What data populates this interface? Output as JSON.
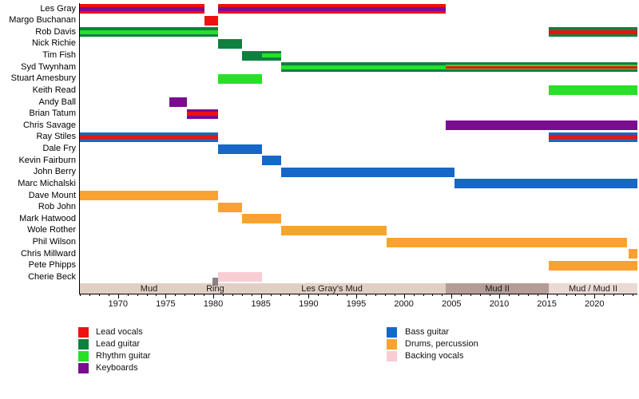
{
  "chart_data": {
    "type": "timeline",
    "subject": "band-members-timeline",
    "x_axis": {
      "min": 1966,
      "max": 2024.5,
      "major_ticks": [
        1970,
        1975,
        1980,
        1985,
        1990,
        1995,
        2000,
        2005,
        2010,
        2015,
        2020
      ],
      "minor_tick_step": 1,
      "grid": "off"
    },
    "colors": {
      "lead_vocals": "#ee1111",
      "lead_guitar": "#0e8040",
      "rhythm_guitar": "#27e027",
      "keyboards": "#7a0d8f",
      "bass_guitar": "#1667c6",
      "drums_percussion": "#f9a231",
      "backing_vocals": "#f9cdd4",
      "era_mud": "#e2cfc4",
      "era_ring": "#8e8184",
      "era_les_grays_mud": "#e2cfc4",
      "era_mud_ii": "#b49d96",
      "era_mud_mud_ii": "#ebd9d3"
    },
    "legend": {
      "position": "bottom-left",
      "columns": [
        [
          {
            "role": "lead_vocals",
            "label": "Lead vocals"
          },
          {
            "role": "lead_guitar",
            "label": "Lead guitar"
          },
          {
            "role": "rhythm_guitar",
            "label": "Rhythm guitar"
          },
          {
            "role": "keyboards",
            "label": "Keyboards"
          }
        ],
        [
          {
            "role": "bass_guitar",
            "label": "Bass guitar"
          },
          {
            "role": "drums_percussion",
            "label": "Drums, percussion"
          },
          {
            "role": "backing_vocals",
            "label": "Backing vocals"
          }
        ]
      ]
    },
    "eras": [
      {
        "label": "Mud",
        "from": 1966,
        "to": 1980.5,
        "color": "era_mud"
      },
      {
        "label": "Les Gray's Mud",
        "from": 1980.5,
        "to": 2004.4,
        "color": "era_les_grays_mud"
      },
      {
        "label": "Mud II",
        "from": 2004.4,
        "to": 2015.2,
        "color": "era_mud_ii"
      },
      {
        "label": "Mud / Mud II",
        "from": 2015.2,
        "to": 2024.5,
        "color": "era_mud_mud_ii"
      }
    ],
    "ring_era": {
      "label": "Ring",
      "from": 1979.9,
      "to": 1980.5,
      "color": "era_ring"
    },
    "members": [
      {
        "name": "Les Gray",
        "segments": [
          {
            "from": 1966,
            "to": 1979.1,
            "base": "lead_vocals",
            "mid": "keyboards"
          },
          {
            "from": 1980.5,
            "to": 2004.4,
            "base": "lead_vocals",
            "mid": "keyboards"
          }
        ]
      },
      {
        "name": "Margo Buchanan",
        "segments": [
          {
            "from": 1979.1,
            "to": 1980.5,
            "base": "lead_vocals"
          }
        ]
      },
      {
        "name": "Rob Davis",
        "segments": [
          {
            "from": 1966,
            "to": 1980.5,
            "base": "lead_guitar",
            "mid": "rhythm_guitar"
          },
          {
            "from": 2015.2,
            "to": 2024.5,
            "base": "lead_guitar",
            "mid": "lead_vocals"
          }
        ]
      },
      {
        "name": "Nick Richie",
        "segments": [
          {
            "from": 1980.5,
            "to": 1983.0,
            "base": "lead_guitar"
          }
        ]
      },
      {
        "name": "Tim Fish",
        "segments": [
          {
            "from": 1983.0,
            "to": 1985.1,
            "base": "lead_guitar"
          },
          {
            "from": 1985.1,
            "to": 1987.1,
            "base": "lead_guitar",
            "mid": "rhythm_guitar"
          }
        ]
      },
      {
        "name": "Syd Twynham",
        "segments": [
          {
            "from": 1987.1,
            "to": 2004.4,
            "base": "lead_guitar",
            "mid": "rhythm_guitar"
          },
          {
            "from": 2004.4,
            "to": 2024.5,
            "base": "lead_guitar",
            "mid": "rhythm_guitar",
            "core": "lead_vocals"
          }
        ]
      },
      {
        "name": "Stuart Amesbury",
        "segments": [
          {
            "from": 1980.5,
            "to": 1985.1,
            "base": "rhythm_guitar"
          }
        ]
      },
      {
        "name": "Keith Read",
        "segments": [
          {
            "from": 2015.2,
            "to": 2024.5,
            "base": "rhythm_guitar"
          }
        ]
      },
      {
        "name": "Andy Ball",
        "segments": [
          {
            "from": 1975.4,
            "to": 1977.2,
            "base": "keyboards"
          }
        ]
      },
      {
        "name": "Brian Tatum",
        "segments": [
          {
            "from": 1977.2,
            "to": 1980.5,
            "base": "keyboards",
            "mid": "lead_vocals"
          }
        ]
      },
      {
        "name": "Chris Savage",
        "segments": [
          {
            "from": 2004.4,
            "to": 2024.5,
            "base": "keyboards"
          }
        ]
      },
      {
        "name": "Ray Stiles",
        "segments": [
          {
            "from": 1966,
            "to": 1980.5,
            "base": "bass_guitar",
            "mid": "lead_vocals"
          },
          {
            "from": 2015.2,
            "to": 2024.5,
            "base": "bass_guitar",
            "mid": "lead_vocals"
          }
        ]
      },
      {
        "name": "Dale Fry",
        "segments": [
          {
            "from": 1980.5,
            "to": 1985.1,
            "base": "bass_guitar"
          }
        ]
      },
      {
        "name": "Kevin Fairburn",
        "segments": [
          {
            "from": 1985.1,
            "to": 1987.1,
            "base": "bass_guitar"
          }
        ]
      },
      {
        "name": "John Berry",
        "segments": [
          {
            "from": 1987.1,
            "to": 2005.3,
            "base": "bass_guitar"
          }
        ]
      },
      {
        "name": "Marc Michalski",
        "segments": [
          {
            "from": 2005.3,
            "to": 2024.5,
            "base": "bass_guitar"
          }
        ]
      },
      {
        "name": "Dave Mount",
        "segments": [
          {
            "from": 1966,
            "to": 1980.5,
            "base": "drums_percussion"
          }
        ]
      },
      {
        "name": "Rob John",
        "segments": [
          {
            "from": 1980.5,
            "to": 1983.0,
            "base": "drums_percussion"
          }
        ]
      },
      {
        "name": "Mark Hatwood",
        "segments": [
          {
            "from": 1983.0,
            "to": 1987.1,
            "base": "drums_percussion"
          }
        ]
      },
      {
        "name": "Wole Rother",
        "segments": [
          {
            "from": 1987.1,
            "to": 1998.2,
            "base": "drums_percussion"
          }
        ]
      },
      {
        "name": "Phil Wilson",
        "segments": [
          {
            "from": 1998.2,
            "to": 2023.4,
            "base": "drums_percussion"
          }
        ]
      },
      {
        "name": "Chris Millward",
        "segments": [
          {
            "from": 2023.6,
            "to": 2024.5,
            "base": "drums_percussion"
          }
        ]
      },
      {
        "name": "Pete Phipps",
        "segments": [
          {
            "from": 2015.2,
            "to": 2024.5,
            "base": "drums_percussion"
          }
        ]
      },
      {
        "name": "Cherie Beck",
        "segments": [
          {
            "from": 1980.5,
            "to": 1985.1,
            "base": "backing_vocals"
          }
        ]
      }
    ]
  }
}
